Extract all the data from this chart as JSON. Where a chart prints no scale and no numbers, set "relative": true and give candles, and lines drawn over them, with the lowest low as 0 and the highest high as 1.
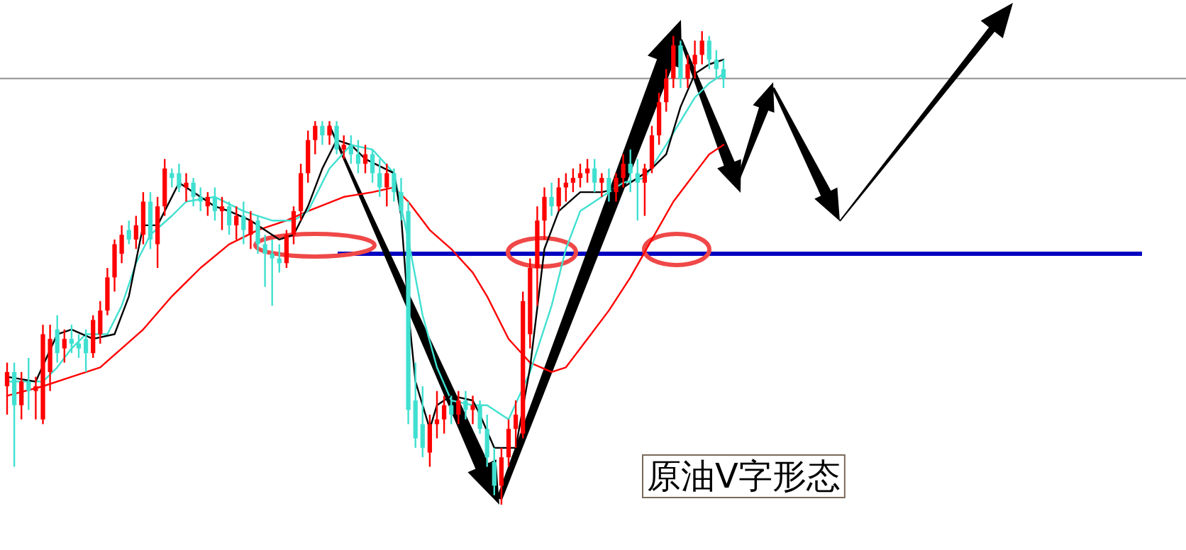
{
  "chart_data": {
    "type": "candlestick",
    "title": "原油V字形态",
    "relative": true,
    "categories": [
      null,
      null,
      null,
      null,
      null,
      null,
      null,
      null,
      null,
      null,
      null,
      null,
      null,
      null,
      null,
      null,
      null,
      null,
      null,
      null,
      null,
      null,
      null,
      null,
      null,
      null,
      null,
      null,
      null,
      null,
      null,
      null,
      null,
      null,
      null,
      null,
      null,
      null,
      null,
      null,
      null,
      null,
      null,
      null,
      null,
      null,
      null,
      null,
      null,
      null,
      null,
      null,
      null,
      null,
      null,
      null,
      null,
      null,
      null,
      null,
      null,
      null,
      null,
      null,
      null,
      null,
      null,
      null,
      null,
      null,
      null,
      null,
      null,
      null,
      null,
      null,
      null,
      null,
      null,
      null,
      null,
      null,
      null,
      null,
      null,
      null,
      null,
      null,
      null,
      null,
      null,
      null,
      null,
      null,
      null,
      null,
      null,
      null,
      null,
      null,
      null
    ],
    "ohlc": [
      [
        0.25,
        0.3,
        0.19,
        0.28
      ],
      [
        0.28,
        0.3,
        0.08,
        0.21
      ],
      [
        0.21,
        0.28,
        0.18,
        0.26
      ],
      [
        0.26,
        0.31,
        0.2,
        0.24
      ],
      [
        0.24,
        0.27,
        0.18,
        0.25
      ],
      [
        0.18,
        0.38,
        0.17,
        0.36
      ],
      [
        0.28,
        0.38,
        0.24,
        0.35
      ],
      [
        0.37,
        0.4,
        0.3,
        0.32
      ],
      [
        0.33,
        0.37,
        0.3,
        0.35
      ],
      [
        0.35,
        0.38,
        0.32,
        0.34
      ],
      [
        0.34,
        0.36,
        0.31,
        0.33
      ],
      [
        0.35,
        0.37,
        0.28,
        0.32
      ],
      [
        0.32,
        0.4,
        0.31,
        0.39
      ],
      [
        0.36,
        0.43,
        0.34,
        0.41
      ],
      [
        0.41,
        0.5,
        0.4,
        0.48
      ],
      [
        0.48,
        0.56,
        0.45,
        0.55
      ],
      [
        0.53,
        0.59,
        0.51,
        0.57
      ],
      [
        0.58,
        0.6,
        0.55,
        0.56
      ],
      [
        0.56,
        0.61,
        0.54,
        0.59
      ],
      [
        0.57,
        0.66,
        0.55,
        0.64
      ],
      [
        0.64,
        0.66,
        0.54,
        0.56
      ],
      [
        0.55,
        0.65,
        0.5,
        0.63
      ],
      [
        0.63,
        0.73,
        0.61,
        0.71
      ],
      [
        0.7,
        0.71,
        0.67,
        0.69
      ],
      [
        0.7,
        0.72,
        0.66,
        0.67
      ],
      [
        0.67,
        0.7,
        0.64,
        0.68
      ],
      [
        0.68,
        0.69,
        0.63,
        0.65
      ],
      [
        0.65,
        0.67,
        0.62,
        0.64
      ],
      [
        0.63,
        0.66,
        0.61,
        0.65
      ],
      [
        0.65,
        0.67,
        0.6,
        0.62
      ],
      [
        0.62,
        0.65,
        0.58,
        0.63
      ],
      [
        0.63,
        0.64,
        0.57,
        0.59
      ],
      [
        0.59,
        0.63,
        0.56,
        0.61
      ],
      [
        0.61,
        0.64,
        0.55,
        0.58
      ],
      [
        0.57,
        0.62,
        0.54,
        0.6
      ],
      [
        0.6,
        0.61,
        0.53,
        0.55
      ],
      [
        0.55,
        0.57,
        0.46,
        0.53
      ],
      [
        0.53,
        0.56,
        0.42,
        0.52
      ],
      [
        0.52,
        0.55,
        0.49,
        0.51
      ],
      [
        0.51,
        0.58,
        0.5,
        0.57
      ],
      [
        0.57,
        0.63,
        0.55,
        0.62
      ],
      [
        0.62,
        0.72,
        0.6,
        0.7
      ],
      [
        0.7,
        0.79,
        0.68,
        0.77
      ],
      [
        0.77,
        0.81,
        0.74,
        0.8
      ],
      [
        0.8,
        0.81,
        0.76,
        0.78
      ],
      [
        0.78,
        0.81,
        0.76,
        0.8
      ],
      [
        0.8,
        0.81,
        0.74,
        0.75
      ],
      [
        0.75,
        0.78,
        0.73,
        0.76
      ],
      [
        0.76,
        0.78,
        0.72,
        0.74
      ],
      [
        0.74,
        0.77,
        0.7,
        0.72
      ],
      [
        0.72,
        0.76,
        0.7,
        0.74
      ],
      [
        0.74,
        0.75,
        0.68,
        0.7
      ],
      [
        0.7,
        0.73,
        0.65,
        0.67
      ],
      [
        0.67,
        0.72,
        0.63,
        0.7
      ],
      [
        0.7,
        0.71,
        0.64,
        0.66
      ],
      [
        0.66,
        0.69,
        0.6,
        0.62
      ],
      [
        0.62,
        0.64,
        0.17,
        0.2
      ],
      [
        0.22,
        0.3,
        0.12,
        0.14
      ],
      [
        0.17,
        0.25,
        0.1,
        0.12
      ],
      [
        0.11,
        0.19,
        0.08,
        0.17
      ],
      [
        0.17,
        0.24,
        0.14,
        0.18
      ],
      [
        0.18,
        0.23,
        0.15,
        0.21
      ],
      [
        0.21,
        0.23,
        0.17,
        0.19
      ],
      [
        0.19,
        0.24,
        0.17,
        0.22
      ],
      [
        0.22,
        0.24,
        0.18,
        0.2
      ],
      [
        0.2,
        0.23,
        0.17,
        0.21
      ],
      [
        0.21,
        0.22,
        0.15,
        0.16
      ],
      [
        0.16,
        0.19,
        0.08,
        0.1
      ],
      [
        0.09,
        0.12,
        0.02,
        0.04
      ],
      [
        0.04,
        0.12,
        0.0,
        0.1
      ],
      [
        0.1,
        0.18,
        0.08,
        0.16
      ],
      [
        0.16,
        0.22,
        0.12,
        0.19
      ],
      [
        0.15,
        0.45,
        0.14,
        0.43
      ],
      [
        0.36,
        0.52,
        0.33,
        0.5
      ],
      [
        0.5,
        0.63,
        0.42,
        0.6
      ],
      [
        0.6,
        0.67,
        0.56,
        0.65
      ],
      [
        0.65,
        0.68,
        0.61,
        0.63
      ],
      [
        0.63,
        0.69,
        0.62,
        0.67
      ],
      [
        0.67,
        0.7,
        0.64,
        0.68
      ],
      [
        0.68,
        0.71,
        0.66,
        0.69
      ],
      [
        0.69,
        0.72,
        0.67,
        0.7
      ],
      [
        0.7,
        0.73,
        0.68,
        0.71
      ],
      [
        0.71,
        0.73,
        0.66,
        0.68
      ],
      [
        0.68,
        0.7,
        0.65,
        0.69
      ],
      [
        0.69,
        0.71,
        0.64,
        0.66
      ],
      [
        0.66,
        0.7,
        0.64,
        0.69
      ],
      [
        0.69,
        0.74,
        0.67,
        0.72
      ],
      [
        0.72,
        0.75,
        0.66,
        0.7
      ],
      [
        0.7,
        0.73,
        0.6,
        0.68
      ],
      [
        0.68,
        0.72,
        0.61,
        0.71
      ],
      [
        0.71,
        0.8,
        0.7,
        0.78
      ],
      [
        0.78,
        0.87,
        0.76,
        0.85
      ],
      [
        0.85,
        0.92,
        0.83,
        0.9
      ],
      [
        0.9,
        0.99,
        0.88,
        0.97
      ],
      [
        0.97,
        0.98,
        0.88,
        0.9
      ],
      [
        0.9,
        0.95,
        0.88,
        0.93
      ],
      [
        0.93,
        0.98,
        0.9,
        0.95
      ],
      [
        0.95,
        1.0,
        0.93,
        0.98
      ],
      [
        0.98,
        0.99,
        0.92,
        0.94
      ],
      [
        0.94,
        0.96,
        0.9,
        0.92
      ],
      [
        0.92,
        0.94,
        0.88,
        0.9
      ]
    ],
    "colors": [
      "#ff0000",
      "#40e0d0",
      "#ff0000",
      "#40e0d0",
      "#ff0000",
      "#ff0000",
      "#ff0000",
      "#40e0d0",
      "#ff0000",
      "#40e0d0",
      "#40e0d0",
      "#40e0d0",
      "#ff0000",
      "#ff0000",
      "#ff0000",
      "#ff0000",
      "#ff0000",
      "#40e0d0",
      "#ff0000",
      "#ff0000",
      "#40e0d0",
      "#ff0000",
      "#ff0000",
      "#40e0d0",
      "#40e0d0",
      "#ff0000",
      "#40e0d0",
      "#40e0d0",
      "#ff0000",
      "#40e0d0",
      "#ff0000",
      "#40e0d0",
      "#ff0000",
      "#40e0d0",
      "#ff0000",
      "#40e0d0",
      "#40e0d0",
      "#40e0d0",
      "#40e0d0",
      "#ff0000",
      "#ff0000",
      "#ff0000",
      "#ff0000",
      "#ff0000",
      "#40e0d0",
      "#ff0000",
      "#40e0d0",
      "#ff0000",
      "#40e0d0",
      "#40e0d0",
      "#ff0000",
      "#40e0d0",
      "#40e0d0",
      "#ff0000",
      "#40e0d0",
      "#40e0d0",
      "#40e0d0",
      "#40e0d0",
      "#40e0d0",
      "#ff0000",
      "#ff0000",
      "#ff0000",
      "#40e0d0",
      "#ff0000",
      "#40e0d0",
      "#ff0000",
      "#40e0d0",
      "#40e0d0",
      "#40e0d0",
      "#ff0000",
      "#ff0000",
      "#ff0000",
      "#ff0000",
      "#ff0000",
      "#ff0000",
      "#ff0000",
      "#40e0d0",
      "#ff0000",
      "#ff0000",
      "#ff0000",
      "#ff0000",
      "#ff0000",
      "#40e0d0",
      "#ff0000",
      "#40e0d0",
      "#ff0000",
      "#ff0000",
      "#40e0d0",
      "#40e0d0",
      "#ff0000",
      "#ff0000",
      "#ff0000",
      "#ff0000",
      "#ff0000",
      "#40e0d0",
      "#ff0000",
      "#ff0000",
      "#ff0000",
      "#40e0d0",
      "#40e0d0",
      "#40e0d0"
    ],
    "series": [
      {
        "type": "line",
        "color": "#ff0000",
        "values": [
          0.23,
          null,
          null,
          null,
          null,
          0.25,
          null,
          null,
          null,
          0.27,
          null,
          null,
          null,
          0.29,
          null,
          null,
          0.33,
          null,
          null,
          0.37,
          null,
          null,
          null,
          0.44,
          null,
          null,
          null,
          0.5,
          null,
          null,
          null,
          0.55,
          null,
          null,
          null,
          0.58,
          null,
          null,
          null,
          0.6,
          null,
          null,
          0.62,
          null,
          null,
          null,
          null,
          0.65,
          null,
          null,
          null,
          0.66,
          null,
          null,
          0.67,
          null,
          0.64,
          null,
          null,
          0.58,
          null,
          null,
          0.54,
          null,
          null,
          0.49,
          null,
          0.44,
          null,
          null,
          0.35,
          null,
          null,
          0.3,
          null,
          null,
          0.28,
          null,
          0.29,
          null,
          null,
          0.35,
          null,
          null,
          0.41,
          null,
          null,
          0.48,
          null,
          null,
          0.56,
          null,
          null,
          0.64,
          null,
          null,
          0.7,
          null,
          0.74,
          null,
          0.76
        ]
      },
      {
        "type": "line",
        "color": "#40e0d0",
        "values": [
          0.26,
          null,
          null,
          null,
          null,
          0.26,
          null,
          0.29,
          null,
          0.33,
          null,
          0.36,
          null,
          null,
          0.36,
          null,
          0.42,
          null,
          0.51,
          null,
          0.57,
          null,
          null,
          0.61,
          null,
          0.64,
          null,
          null,
          null,
          0.65,
          null,
          null,
          null,
          0.62,
          null,
          0.61,
          null,
          0.6,
          null,
          null,
          0.6,
          null,
          0.62,
          null,
          null,
          0.71,
          null,
          null,
          0.76,
          null,
          null,
          0.75,
          null,
          null,
          0.7,
          null,
          0.56,
          null,
          0.4,
          null,
          0.29,
          null,
          0.22,
          null,
          null,
          0.21,
          null,
          0.21,
          null,
          null,
          0.18,
          null,
          null,
          0.28,
          null,
          null,
          0.42,
          null,
          0.54,
          null,
          0.62,
          null,
          null,
          0.65,
          null,
          null,
          0.68,
          null,
          null,
          0.69,
          null,
          null,
          0.76,
          null,
          0.81,
          null,
          0.86,
          null,
          0.89,
          null,
          0.91
        ]
      },
      {
        "type": "line",
        "color": "#000000",
        "values": [
          0.27,
          null,
          null,
          null,
          0.26,
          null,
          null,
          0.36,
          null,
          0.37,
          null,
          null,
          0.35,
          null,
          null,
          0.36,
          null,
          0.44,
          null,
          0.59,
          null,
          0.59,
          null,
          null,
          0.68,
          0.67,
          null,
          0.65,
          null,
          0.63,
          null,
          0.62,
          null,
          null,
          0.6,
          null,
          null,
          null,
          0.56,
          null,
          0.57,
          null,
          0.63,
          null,
          0.71,
          null,
          0.77,
          null,
          0.76,
          null,
          0.73,
          null,
          null,
          null,
          0.7,
          0.61,
          0.41,
          0.26,
          null,
          0.16,
          0.21,
          null,
          0.23,
          null,
          null,
          0.22,
          0.19,
          null,
          0.12,
          null,
          null,
          0.12,
          null,
          0.29,
          null,
          0.54,
          null,
          0.62,
          null,
          null,
          0.66,
          null,
          null,
          0.66,
          null,
          null,
          0.67,
          null,
          null,
          null,
          0.71,
          null,
          0.74,
          null,
          0.84,
          null,
          0.91,
          null,
          0.93,
          null,
          0.94
        ]
      }
    ],
    "ref_lines": [
      {
        "axis": "y",
        "value": 0.9,
        "color": "#909090"
      },
      {
        "axis": "y",
        "value": 0.53,
        "color": "#0000c0"
      }
    ]
  }
}
